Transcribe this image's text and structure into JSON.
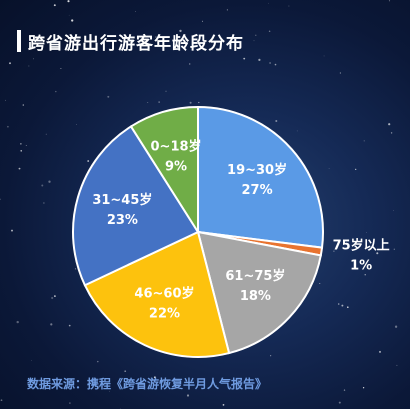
{
  "title": "跨省游出行游客年龄段分布",
  "source": "数据来源：携程《跨省游恢复半月人气报告》",
  "colors": {
    "background": "#0c1a3f",
    "title": "#ffffff",
    "source": "#6f9be0",
    "outside_label": "#ffffff",
    "inside_label": "#ffffff"
  },
  "chart_data": {
    "type": "pie",
    "title": "跨省游出行游客年龄段分布",
    "legend": "none",
    "slices": [
      {
        "label": "19~30岁",
        "value": 27,
        "display": "27%",
        "color": "#5a9ae6",
        "label_pos": "inside"
      },
      {
        "label": "75岁以上",
        "value": 1,
        "display": "1%",
        "color": "#e8732f",
        "label_pos": "outside"
      },
      {
        "label": "61~75岁",
        "value": 18,
        "display": "18%",
        "color": "#a6a6a6",
        "label_pos": "inside"
      },
      {
        "label": "46~60岁",
        "value": 22,
        "display": "22%",
        "color": "#fdc20d",
        "label_pos": "inside"
      },
      {
        "label": "31~45岁",
        "value": 23,
        "display": "23%",
        "color": "#4472c4",
        "label_pos": "inside"
      },
      {
        "label": "0~18岁",
        "value": 9,
        "display": "9%",
        "color": "#70ad47",
        "label_pos": "inside"
      }
    ]
  }
}
